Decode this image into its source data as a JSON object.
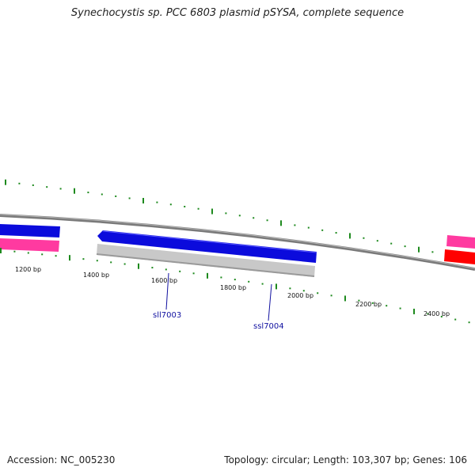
{
  "header": {
    "title": "Synechocystis sp. PCC 6803 plasmid pSYSA, complete sequence"
  },
  "footer": {
    "accession": "Accession: NC_005230",
    "stats": "Topology: circular; Length: 103,307 bp; Genes: 106"
  },
  "colors": {
    "backbone": "#7a7a7a",
    "cds_forward": "#0b0bdc",
    "cds_reverse_gray": "#c8c8c8",
    "cds_pink": "#ff3aa0",
    "cds_red": "#ff0000",
    "tick": "#1e8a1e",
    "gene_label": "#1010a0"
  },
  "axis": {
    "unit": "bp",
    "labels": [
      "1200 bp",
      "1400 bp",
      "1600 bp",
      "1800 bp",
      "2000 bp",
      "2200 bp",
      "2400 bp"
    ]
  },
  "genes": [
    {
      "name": "sll7003"
    },
    {
      "name": "ssl7004"
    }
  ]
}
